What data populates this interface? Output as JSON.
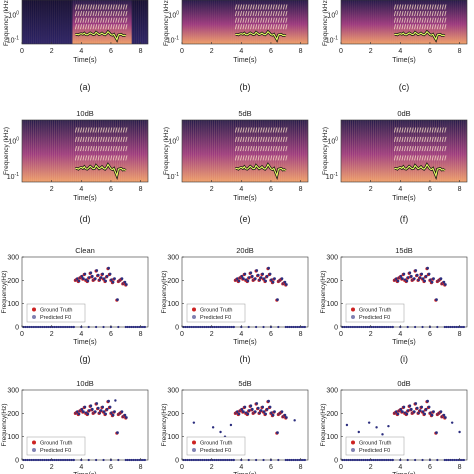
{
  "figure": {
    "colors": {
      "marker": "#2b2d7e",
      "ground_truth": "#cc2222",
      "axis": "#333333",
      "spec_dark": "#241a4a",
      "spec_mid": "#9c3a7f",
      "spec_hot": "#f0a06a"
    }
  },
  "chart_data": [
    {
      "panel_label": "(a)",
      "title": "",
      "type": "heatmap",
      "xlabel": "Time(s)",
      "ylabel": "Frequency (kHz)",
      "xlim": [
        0,
        8.5
      ],
      "x_ticks": [
        "0",
        "2",
        "4",
        "6",
        "8"
      ],
      "y_ticks": [
        "10^0",
        "10^-1"
      ],
      "y_scale": "log"
    },
    {
      "panel_label": "(b)",
      "title": "",
      "type": "heatmap",
      "xlabel": "Time(s)",
      "ylabel": "Frequency (kHz)",
      "xlim": [
        0,
        8.5
      ],
      "x_ticks": [
        "0",
        "2",
        "4",
        "6",
        "8"
      ],
      "y_ticks": [
        "10^0",
        "10^-1"
      ],
      "y_scale": "log"
    },
    {
      "panel_label": "(c)",
      "title": "",
      "type": "heatmap",
      "xlabel": "Time(s)",
      "ylabel": "Frequency (kHz)",
      "xlim": [
        0,
        8.5
      ],
      "x_ticks": [
        "0",
        "2",
        "4",
        "6",
        "8"
      ],
      "y_ticks": [
        "10^0",
        "10^-1"
      ],
      "y_scale": "log"
    },
    {
      "panel_label": "(d)",
      "title": "10dB",
      "type": "heatmap",
      "xlabel": "Time(s)",
      "ylabel": "Frequency (kHz)",
      "xlim": [
        0,
        8.5
      ],
      "x_ticks": [
        "2",
        "4",
        "6",
        "8"
      ],
      "y_ticks": [
        "10^0",
        "10^-1"
      ],
      "y_scale": "log"
    },
    {
      "panel_label": "(e)",
      "title": "5dB",
      "type": "heatmap",
      "xlabel": "Time(s)",
      "ylabel": "Frequency (kHz)",
      "xlim": [
        0,
        8.5
      ],
      "x_ticks": [
        "2",
        "4",
        "6",
        "8"
      ],
      "y_ticks": [
        "10^0",
        "10^-1"
      ],
      "y_scale": "log"
    },
    {
      "panel_label": "(f)",
      "title": "0dB",
      "type": "heatmap",
      "xlabel": "Time(s)",
      "ylabel": "Frequency (kHz)",
      "xlim": [
        0,
        8.5
      ],
      "x_ticks": [
        "2",
        "4",
        "6",
        "8"
      ],
      "y_ticks": [
        "10^0",
        "10^-1"
      ],
      "y_scale": "log"
    },
    {
      "panel_label": "(g)",
      "title": "Clean",
      "type": "scatter",
      "xlabel": "Time(s)",
      "ylabel": "Frequency(Hz)",
      "xlim": [
        0,
        8.5
      ],
      "ylim": [
        0,
        300
      ],
      "x_ticks": [
        "0",
        "2",
        "4",
        "6",
        "8"
      ],
      "y_ticks": [
        "0",
        "100",
        "200",
        "300"
      ],
      "legend": [
        "Ground Truth",
        "Predicted F0"
      ],
      "legend_position": "lower-left",
      "outliers": []
    },
    {
      "panel_label": "(h)",
      "title": "20dB",
      "type": "scatter",
      "xlabel": "Time(s)",
      "ylabel": "Frequency(Hz)",
      "xlim": [
        0,
        8.5
      ],
      "ylim": [
        0,
        300
      ],
      "x_ticks": [
        "0",
        "2",
        "4",
        "6",
        "8"
      ],
      "y_ticks": [
        "0",
        "100",
        "200",
        "300"
      ],
      "legend": [
        "Ground Truth",
        "Predicted F0"
      ],
      "legend_position": "lower-left",
      "outliers": []
    },
    {
      "panel_label": "(i)",
      "title": "15dB",
      "type": "scatter",
      "xlabel": "Time(s)",
      "ylabel": "Frequency(Hz)",
      "xlim": [
        0,
        8.5
      ],
      "ylim": [
        0,
        300
      ],
      "x_ticks": [
        "0",
        "2",
        "4",
        "6",
        "8"
      ],
      "y_ticks": [
        "0",
        "100",
        "200",
        "300"
      ],
      "legend": [
        "Ground Truth",
        "Predicted F0"
      ],
      "legend_position": "lower-left",
      "outliers": []
    },
    {
      "panel_label": "",
      "title": "10dB",
      "type": "scatter",
      "xlabel": "Time(s)",
      "ylabel": "Frequency(Hz)",
      "xlim": [
        0,
        8.5
      ],
      "ylim": [
        0,
        300
      ],
      "x_ticks": [
        "0",
        "2",
        "4",
        "6",
        "8"
      ],
      "y_ticks": [
        "0",
        "100",
        "200",
        "300"
      ],
      "legend": [
        "Ground Truth",
        "Predicted F0"
      ],
      "legend_position": "lower-left",
      "outliers": [
        [
          6.3,
          255
        ]
      ]
    },
    {
      "panel_label": "",
      "title": "5dB",
      "type": "scatter",
      "xlabel": "Time(s)",
      "ylabel": "Frequency(Hz)",
      "xlim": [
        0,
        8.5
      ],
      "ylim": [
        0,
        300
      ],
      "x_ticks": [
        "0",
        "2",
        "4",
        "6",
        "8"
      ],
      "y_ticks": [
        "0",
        "100",
        "200",
        "300"
      ],
      "legend": [
        "Ground Truth",
        "Predicted F0"
      ],
      "legend_position": "lower-left",
      "outliers": [
        [
          0.8,
          160
        ],
        [
          1.5,
          90
        ],
        [
          2.1,
          140
        ],
        [
          2.6,
          120
        ],
        [
          2.9,
          100
        ],
        [
          3.3,
          150
        ],
        [
          7.6,
          170
        ]
      ]
    },
    {
      "panel_label": "",
      "title": "0dB",
      "type": "scatter",
      "xlabel": "Time(s)",
      "ylabel": "Frequency(Hz)",
      "xlim": [
        0,
        8.5
      ],
      "ylim": [
        0,
        300
      ],
      "x_ticks": [
        "0",
        "2",
        "4",
        "6",
        "8"
      ],
      "y_ticks": [
        "0",
        "100",
        "200",
        "300"
      ],
      "legend": [
        "Ground Truth",
        "Predicted F0"
      ],
      "legend_position": "lower-left",
      "outliers": [
        [
          0.4,
          150
        ],
        [
          1.2,
          120
        ],
        [
          1.9,
          160
        ],
        [
          2.4,
          140
        ],
        [
          2.8,
          110
        ],
        [
          3.2,
          145
        ],
        [
          7.5,
          160
        ],
        [
          8.0,
          120
        ]
      ]
    }
  ],
  "f0_contour": {
    "x": [
      3.6,
      3.7,
      3.8,
      3.9,
      4.0,
      4.1,
      4.2,
      4.3,
      4.4,
      4.5,
      4.6,
      4.7,
      4.8,
      4.9,
      5.0,
      5.1,
      5.2,
      5.3,
      5.4,
      5.5,
      5.6,
      5.7,
      5.8,
      5.9,
      6.0,
      6.1,
      6.2,
      6.4,
      6.5,
      6.6,
      6.7,
      6.8,
      6.9,
      7.0
    ],
    "y": [
      200,
      205,
      195,
      210,
      215,
      205,
      225,
      200,
      195,
      210,
      230,
      215,
      200,
      205,
      240,
      220,
      200,
      210,
      225,
      205,
      195,
      215,
      250,
      225,
      200,
      190,
      205,
      115,
      195,
      200,
      205,
      185,
      190,
      180
    ]
  }
}
